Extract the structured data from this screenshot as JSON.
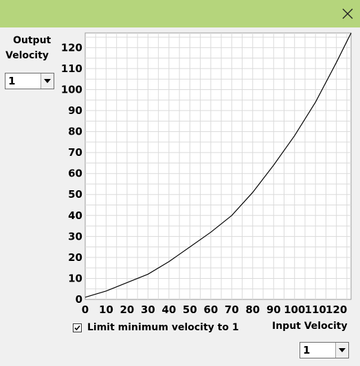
{
  "window": {
    "close_icon": "close-icon",
    "titlebar_color": "#b5d57c"
  },
  "output_velocity": {
    "label_line1": "Output",
    "label_line2": "Velocity",
    "value": "1"
  },
  "input_velocity": {
    "label": "Input Velocity",
    "value": "1"
  },
  "limit_checkbox": {
    "label": "Limit minimum velocity to 1",
    "checked": true
  },
  "chart_data": {
    "type": "line",
    "xlabel": "Input Velocity",
    "ylabel": "Output Velocity",
    "xlim": [
      0,
      127
    ],
    "ylim": [
      0,
      127
    ],
    "x_ticks": [
      0,
      10,
      20,
      30,
      40,
      50,
      60,
      70,
      80,
      90,
      100,
      110,
      120
    ],
    "y_ticks": [
      0,
      10,
      20,
      30,
      40,
      50,
      60,
      70,
      80,
      90,
      100,
      110,
      120
    ],
    "grid": true,
    "series": [
      {
        "x": [
          0,
          10,
          20,
          30,
          40,
          50,
          60,
          70,
          80,
          90,
          100,
          110,
          120,
          127
        ],
        "y": [
          1,
          4,
          8,
          12,
          18,
          25,
          32,
          40,
          51,
          64,
          78,
          94,
          113,
          127
        ]
      }
    ]
  }
}
